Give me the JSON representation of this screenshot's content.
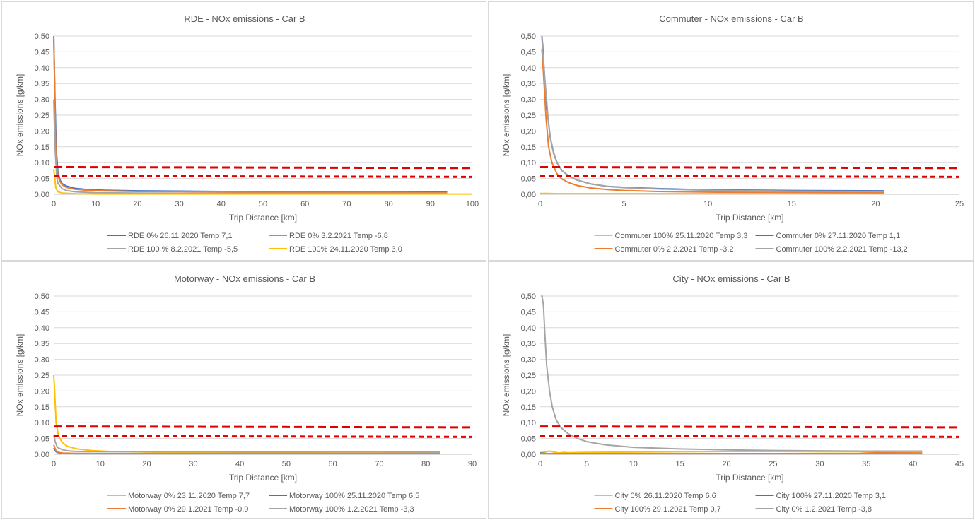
{
  "chart_data": [
    {
      "type": "line",
      "title": "RDE - NOx emissions - Car B",
      "xlabel": "Trip Distance [km]",
      "ylabel": "NOx emissions [g/km]",
      "xlim": [
        0,
        100
      ],
      "ylim": [
        0,
        0.5
      ],
      "xticks": [
        0,
        10,
        20,
        30,
        40,
        50,
        60,
        70,
        80,
        90,
        100
      ],
      "yticks": [
        "0,00",
        "0,05",
        "0,10",
        "0,15",
        "0,20",
        "0,25",
        "0,30",
        "0,35",
        "0,40",
        "0,45",
        "0,50"
      ],
      "limit_lines": [
        0.086,
        0.058
      ],
      "legend": "bottom",
      "series": [
        {
          "name": "RDE 0% 26.11.2020 Temp 7,1",
          "color": "#4472c4",
          "x": [
            0,
            0.3,
            0.6,
            1,
            1.5,
            2,
            3,
            5,
            8,
            12,
            20,
            30,
            40,
            50,
            60,
            70,
            80,
            90,
            94
          ],
          "y": [
            0.5,
            0.3,
            0.14,
            0.07,
            0.045,
            0.034,
            0.026,
            0.019,
            0.015,
            0.013,
            0.011,
            0.01,
            0.009,
            0.008,
            0.008,
            0.008,
            0.008,
            0.007,
            0.007
          ]
        },
        {
          "name": "RDE 0% 3.2.2021 Temp -6,8",
          "color": "#ed7d31",
          "x": [
            0,
            0.2,
            0.5,
            1,
            1.5,
            2,
            3,
            5,
            8,
            12,
            20,
            30,
            40,
            50,
            60,
            70,
            80,
            90,
            94
          ],
          "y": [
            0.5,
            0.35,
            0.12,
            0.06,
            0.04,
            0.03,
            0.022,
            0.016,
            0.013,
            0.011,
            0.009,
            0.008,
            0.007,
            0.006,
            0.006,
            0.006,
            0.006,
            0.005,
            0.005
          ]
        },
        {
          "name": "RDE 100 % 8.2.2021 Temp -5,5",
          "color": "#a5a5a5",
          "x": [
            0,
            0.3,
            0.7,
            1,
            2,
            3,
            5,
            10,
            20,
            30,
            40,
            50,
            60,
            70,
            80,
            90,
            94
          ],
          "y": [
            0.3,
            0.15,
            0.06,
            0.035,
            0.018,
            0.012,
            0.008,
            0.005,
            0.004,
            0.003,
            0.003,
            0.003,
            0.003,
            0.003,
            0.003,
            0.003,
            0.003
          ]
        },
        {
          "name": "RDE 100% 24.11.2020 Temp 3,0",
          "color": "#ffc000",
          "x": [
            0,
            0.5,
            1,
            2,
            5,
            10,
            20,
            33,
            50,
            70,
            90,
            100
          ],
          "y": [
            0.08,
            0.02,
            0.008,
            0.004,
            0.002,
            0.001,
            0.001,
            0.001,
            0.001,
            0.001,
            0.001,
            0.001
          ]
        }
      ]
    },
    {
      "type": "line",
      "title": "Commuter - NOx emissions - Car B",
      "xlabel": "Trip Distance [km]",
      "ylabel": "NOx emissions [g/km]",
      "xlim": [
        0,
        25
      ],
      "ylim": [
        0,
        0.5
      ],
      "xticks": [
        0,
        5,
        10,
        15,
        20,
        25
      ],
      "yticks": [
        "0,00",
        "0,05",
        "0,10",
        "0,15",
        "0,20",
        "0,25",
        "0,30",
        "0,35",
        "0,40",
        "0,45",
        "0,50"
      ],
      "limit_lines": [
        0.086,
        0.058
      ],
      "legend": "bottom",
      "series": [
        {
          "name": "Commuter 100% 25.11.2020 Temp 3,3",
          "color": "#ffc000",
          "x": [
            0,
            0.5,
            1,
            2,
            5,
            10,
            15,
            20.5
          ],
          "y": [
            0.003,
            0.003,
            0.002,
            0.002,
            0.002,
            0.002,
            0.002,
            0.002
          ]
        },
        {
          "name": "Commuter 0% 27.11.2020 Temp 1,1",
          "color": "#4472c4",
          "x": [
            0.1,
            0.15,
            0.25,
            0.4,
            0.6,
            0.8,
            1,
            1.3,
            1.7,
            2.2,
            3,
            4,
            5,
            7,
            10,
            15,
            20.5
          ],
          "y": [
            0.5,
            0.47,
            0.38,
            0.27,
            0.18,
            0.13,
            0.1,
            0.075,
            0.058,
            0.045,
            0.033,
            0.025,
            0.022,
            0.018,
            0.014,
            0.012,
            0.011
          ]
        },
        {
          "name": "Commuter 0% 2.2.2021 Temp -3,2",
          "color": "#ed7d31",
          "x": [
            0.1,
            0.2,
            0.35,
            0.5,
            0.7,
            1,
            1.3,
            1.7,
            2.2,
            3,
            4,
            5,
            7,
            10,
            15,
            20.5
          ],
          "y": [
            0.46,
            0.38,
            0.24,
            0.15,
            0.1,
            0.065,
            0.048,
            0.037,
            0.028,
            0.02,
            0.015,
            0.012,
            0.009,
            0.007,
            0.006,
            0.005
          ]
        },
        {
          "name": "Commuter 100% 2.2.2021 Temp -13,2",
          "color": "#a5a5a5",
          "x": [
            0.1,
            0.15,
            0.3,
            0.5,
            0.7,
            1,
            1.3,
            1.7,
            2.2,
            3,
            4,
            5,
            7,
            10,
            15,
            20.5
          ],
          "y": [
            0.5,
            0.45,
            0.35,
            0.22,
            0.15,
            0.1,
            0.075,
            0.058,
            0.045,
            0.033,
            0.025,
            0.021,
            0.017,
            0.013,
            0.01,
            0.009
          ]
        }
      ]
    },
    {
      "type": "line",
      "title": "Motorway - NOx emissions - Car B",
      "xlabel": "Trip Distance [km]",
      "ylabel": "NOx emissions [g/km]",
      "xlim": [
        0,
        90
      ],
      "ylim": [
        0,
        0.5
      ],
      "xticks": [
        0,
        10,
        20,
        30,
        40,
        50,
        60,
        70,
        80,
        90
      ],
      "yticks": [
        "0,00",
        "0,05",
        "0,10",
        "0,15",
        "0,20",
        "0,25",
        "0,30",
        "0,35",
        "0,40",
        "0,45",
        "0,50"
      ],
      "limit_lines": [
        0.088,
        0.058
      ],
      "legend": "bottom",
      "series": [
        {
          "name": "Motorway 0% 23.11.2020 Temp 7,7",
          "color": "#ffc000",
          "x": [
            0,
            0.2,
            0.5,
            1,
            1.5,
            2,
            3,
            5,
            8,
            12,
            20,
            30,
            40,
            50,
            60,
            70,
            83
          ],
          "y": [
            0.25,
            0.2,
            0.1,
            0.06,
            0.045,
            0.035,
            0.025,
            0.017,
            0.012,
            0.009,
            0.007,
            0.006,
            0.005,
            0.005,
            0.004,
            0.004,
            0.004
          ]
        },
        {
          "name": "Motorway 100% 25.11.2020 Temp 6,5",
          "color": "#4472c4",
          "x": [
            0,
            0.5,
            1,
            2,
            5,
            10,
            20,
            30,
            40,
            50,
            60,
            70,
            83
          ],
          "y": [
            0.02,
            0.008,
            0.005,
            0.003,
            0.002,
            0.002,
            0.002,
            0.002,
            0.002,
            0.002,
            0.002,
            0.002,
            0.002
          ]
        },
        {
          "name": "Motorway 0% 29.1.2021 Temp -0,9",
          "color": "#ed7d31",
          "x": [
            0,
            0.5,
            1,
            2,
            5,
            10,
            20,
            30,
            40,
            50,
            60,
            70,
            83
          ],
          "y": [
            0.03,
            0.01,
            0.006,
            0.004,
            0.003,
            0.002,
            0.002,
            0.002,
            0.003,
            0.003,
            0.003,
            0.003,
            0.003
          ]
        },
        {
          "name": "Motorway 100% 1.2.2021 Temp -3,3",
          "color": "#a5a5a5",
          "x": [
            0,
            0.3,
            0.7,
            1,
            2,
            3,
            5,
            10,
            20,
            30,
            40,
            50,
            60,
            70,
            83
          ],
          "y": [
            0.06,
            0.04,
            0.025,
            0.02,
            0.014,
            0.011,
            0.009,
            0.008,
            0.008,
            0.008,
            0.008,
            0.008,
            0.008,
            0.008,
            0.007
          ]
        }
      ]
    },
    {
      "type": "line",
      "title": "City - NOx emissions - Car B",
      "xlabel": "Trip Distance [km]",
      "ylabel": "NOx emissions [g/km]",
      "xlim": [
        0,
        45
      ],
      "ylim": [
        0,
        0.5
      ],
      "xticks": [
        0,
        5,
        10,
        15,
        20,
        25,
        30,
        35,
        40,
        45
      ],
      "yticks": [
        "0,00",
        "0,05",
        "0,10",
        "0,15",
        "0,20",
        "0,25",
        "0,30",
        "0,35",
        "0,40",
        "0,45",
        "0,50"
      ],
      "limit_lines": [
        0.088,
        0.058
      ],
      "legend": "bottom",
      "series": [
        {
          "name": "City 0% 26.11.2020 Temp 6,6",
          "color": "#ffc000",
          "x": [
            0,
            0.3,
            0.6,
            1,
            1.5,
            2,
            2.5,
            3,
            5,
            10,
            15,
            20,
            25,
            30,
            35,
            41
          ],
          "y": [
            0.005,
            0.006,
            0.008,
            0.01,
            0.007,
            0.004,
            0.006,
            0.005,
            0.006,
            0.007,
            0.008,
            0.009,
            0.009,
            0.008,
            0.008,
            0.008
          ]
        },
        {
          "name": "City 100% 27.11.2020 Temp 3,1",
          "color": "#4472c4",
          "x": [
            0,
            0.5,
            1,
            2,
            5,
            10,
            20,
            30,
            41
          ],
          "y": [
            0.004,
            0.003,
            0.002,
            0.002,
            0.002,
            0.002,
            0.002,
            0.002,
            0.002
          ]
        },
        {
          "name": "City 100% 29.1.2021 Temp 0,7",
          "color": "#ed7d31",
          "x": [
            0,
            1,
            5,
            10,
            20,
            30,
            34,
            36,
            41
          ],
          "y": [
            0.002,
            0.002,
            0.002,
            0.002,
            0.002,
            0.002,
            0.002,
            0.005,
            0.004
          ]
        },
        {
          "name": "City 0% 1.2.2021 Temp -3,8",
          "color": "#a5a5a5",
          "x": [
            0.1,
            0.2,
            0.35,
            0.5,
            0.7,
            1,
            1.3,
            1.7,
            2.2,
            3,
            4,
            5,
            7,
            10,
            15,
            20,
            25,
            30,
            35,
            41
          ],
          "y": [
            0.5,
            0.5,
            0.47,
            0.38,
            0.28,
            0.2,
            0.15,
            0.11,
            0.085,
            0.065,
            0.05,
            0.04,
            0.03,
            0.022,
            0.017,
            0.014,
            0.012,
            0.011,
            0.01,
            0.01
          ]
        }
      ]
    }
  ]
}
